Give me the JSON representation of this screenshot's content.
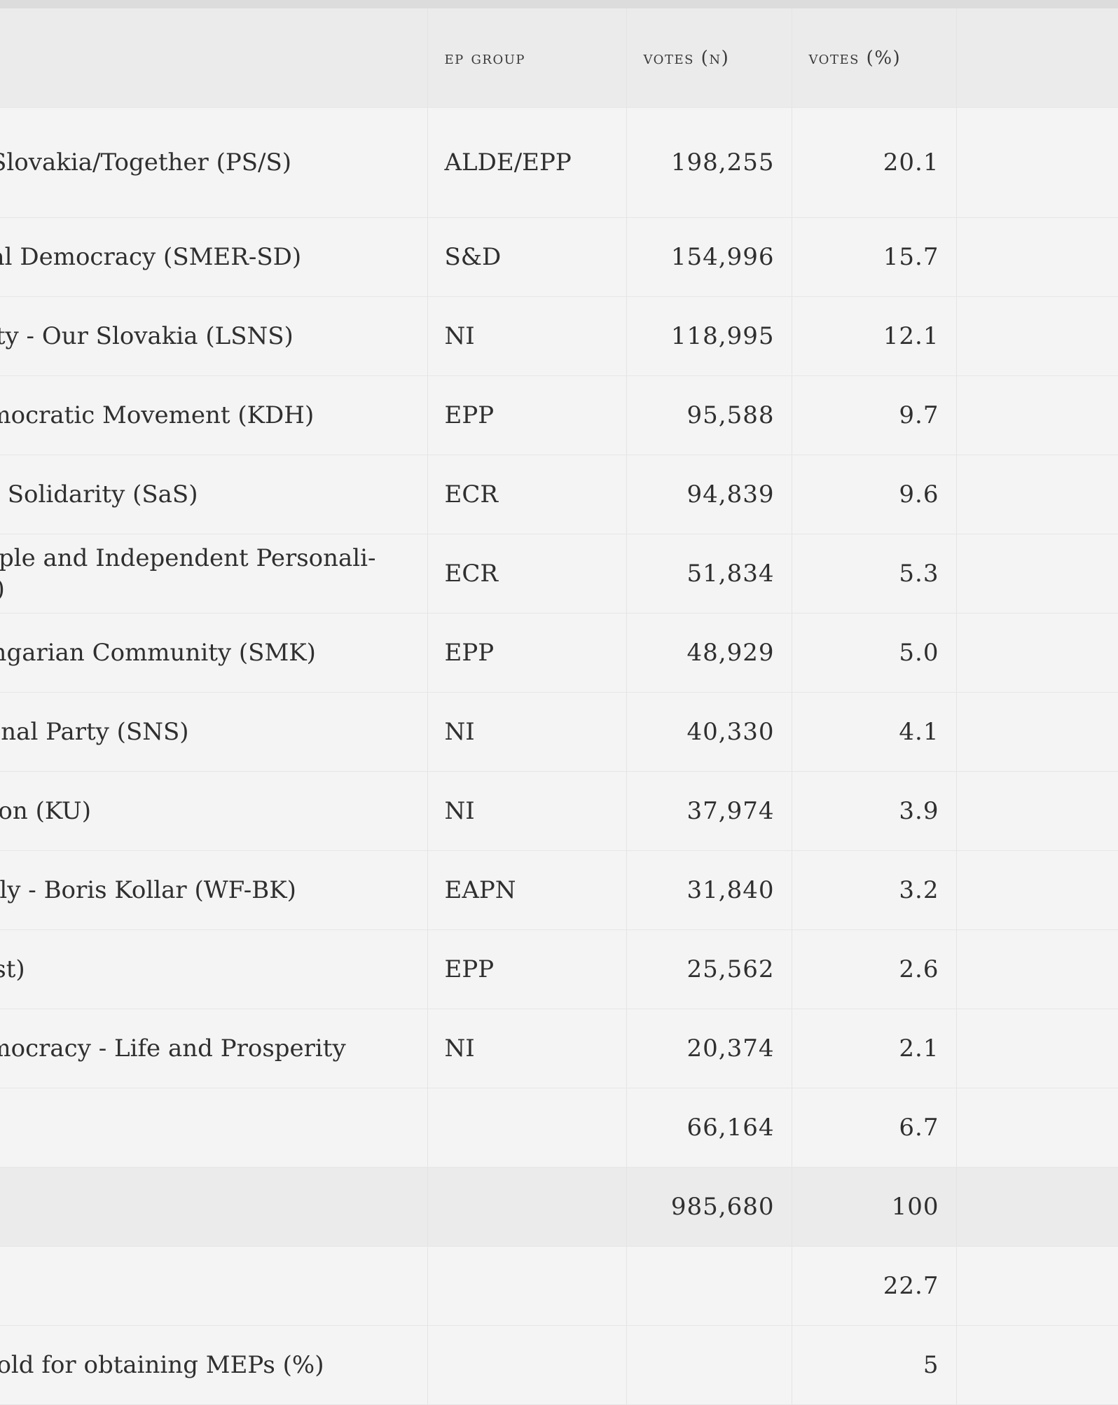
{
  "headers": {
    "party": "",
    "ep_group": "EP GROUP",
    "votes_n": "VOTES (N)",
    "votes_pct": "VOTES (%)",
    "extra": ""
  },
  "rows": [
    {
      "party": "ve Slovakia/Together (PS/S)",
      "group": "ALDE/EPP",
      "votes_n": "198,255",
      "votes_pct": "20.1"
    },
    {
      "party": "ocial Democracy (SMER-SD)",
      "group": "S&D",
      "votes_n": "154,996",
      "votes_pct": "15.7"
    },
    {
      "party": "Party - Our Slovakia (LSNS)",
      "group": "NI",
      "votes_n": "118,995",
      "votes_pct": "12.1"
    },
    {
      "party": " Democratic Movement (KDH)",
      "group": "EPP",
      "votes_n": "95,588",
      "votes_pct": "9.7"
    },
    {
      "party": "and Solidarity (SaS)",
      "group": "ECR",
      "votes_n": "94,839",
      "votes_pct": "9.6"
    },
    {
      "party": " People and Independent Personali-\nNO)",
      "group": "ECR",
      "votes_n": "51,834",
      "votes_pct": "5.3"
    },
    {
      "party": "Hungarian Community (SMK)",
      "group": "EPP",
      "votes_n": "48,929",
      "votes_pct": "5.0"
    },
    {
      "party": "ational Party (SNS)",
      "group": "NI",
      "votes_n": "40,330",
      "votes_pct": "4.1"
    },
    {
      "party": " Union (KU)",
      "group": "NI",
      "votes_n": "37,974",
      "votes_pct": "3.9"
    },
    {
      "party": "amily - Boris Kollar (WF-BK)",
      "group": "EAPN",
      "votes_n": "31,840",
      "votes_pct": "3.2"
    },
    {
      "party": "Most)",
      "group": "EPP",
      "votes_n": "25,562",
      "votes_pct": "2.6"
    },
    {
      "party": " Democracy - Life and Prosperity",
      "group": "NI",
      "votes_n": "20,374",
      "votes_pct": "2.1"
    },
    {
      "party": "",
      "group": "",
      "votes_n": "66,164",
      "votes_pct": "6.7"
    }
  ],
  "total": {
    "party": "",
    "group": "",
    "votes_n": "985,680",
    "votes_pct": "100"
  },
  "footer_rows": [
    {
      "party": "(%)",
      "group": "",
      "votes_n": "",
      "votes_pct": "22.7"
    },
    {
      "party": "eshold for obtaining MEPs (%)",
      "group": "",
      "votes_n": "",
      "votes_pct": "5"
    }
  ]
}
